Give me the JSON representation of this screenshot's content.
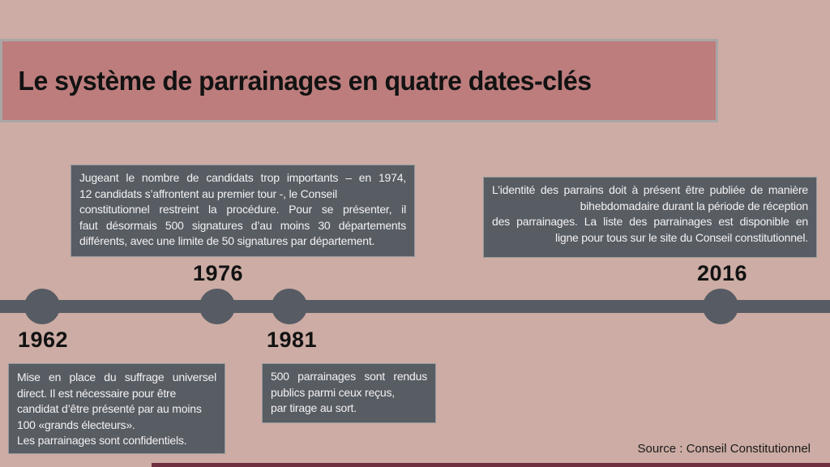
{
  "page": {
    "title": "Le système de parrainages en quatre dates-clés",
    "source": "Source : Conseil Constitutionnel"
  },
  "colors": {
    "background": "#ccaca4",
    "banner": "#bd7d7d",
    "banner_border": "#a9a6a6",
    "box_background": "#585c63",
    "box_text": "#f2f2f2",
    "timeline": "#575b63",
    "year_text": "#121212",
    "bottom_bar": "#6e3040"
  },
  "timeline": {
    "events": [
      {
        "year": "1962",
        "box_position": "below",
        "box_lines": [
          "Mise en place du suffrage universel",
          "direct. Il est nécessaire pour être",
          "candidat d’être présenté par au moins",
          "100 «grands électeurs».",
          "Les parrainages sont confidentiels."
        ]
      },
      {
        "year": "1976",
        "box_position": "above",
        "box_lines": [
          "Jugeant le nombre de candidats trop importants – en 1974,",
          "12 candidats s’affrontent au premier tour -, le Conseil",
          "constitutionnel restreint la procédure. Pour se présenter, il",
          "faut désormais 500 signatures d’au moins 30 départements",
          "différents, avec une limite de 50 signatures par département."
        ]
      },
      {
        "year": "1981",
        "box_position": "below",
        "box_lines": [
          "500 parrainages sont rendus",
          "publics parmi ceux reçus,",
          "par tirage au sort."
        ]
      },
      {
        "year": "2016",
        "box_position": "above",
        "box_lines": [
          "L’identité des parrains doit à présent être publiée de manière",
          "bihebdomadaire durant la période de réception",
          "des parrainages. La liste des parrainages est disponible en",
          "ligne pour tous sur le site du Conseil constitutionnel."
        ]
      }
    ]
  }
}
